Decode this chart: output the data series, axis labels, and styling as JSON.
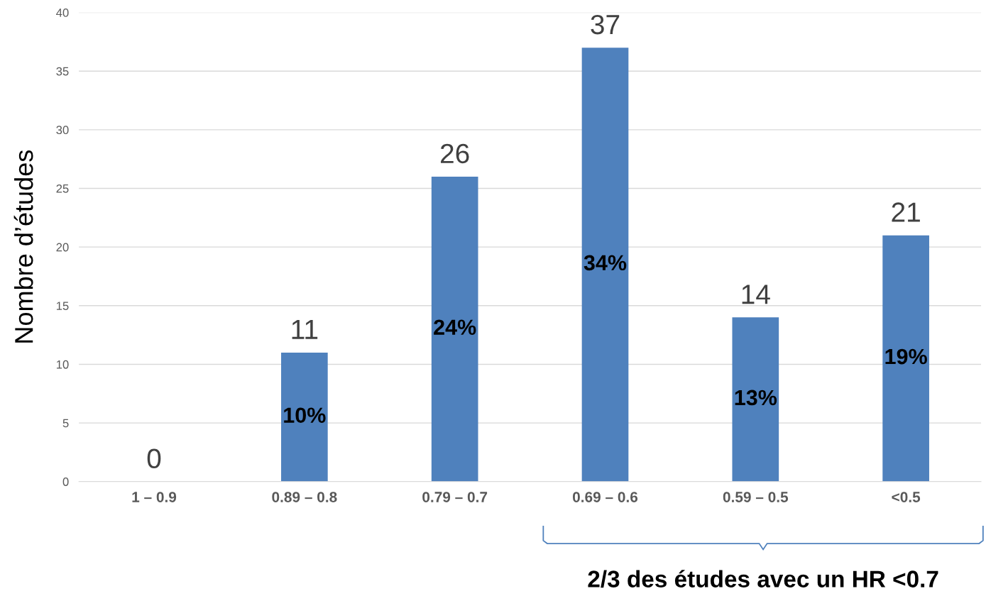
{
  "chart_data": {
    "type": "bar",
    "ylabel": "Nombre d’études",
    "categories": [
      "1 – 0.9",
      "0.89 – 0.8",
      "0.79 – 0.7",
      "0.69 – 0.6",
      "0.59 – 0.5",
      "<0.5"
    ],
    "values": [
      0,
      11,
      26,
      37,
      14,
      21
    ],
    "color": "#4f81bd",
    "ylim": [
      0,
      40
    ],
    "yticks": [
      0,
      5,
      10,
      15,
      20,
      25,
      30,
      35,
      40
    ],
    "grid": "y",
    "data_labels": true,
    "annotations": [
      "10%",
      "24%",
      "34%",
      "13%",
      "19%",
      "2/3 des études avec un HR <0.7"
    ]
  }
}
